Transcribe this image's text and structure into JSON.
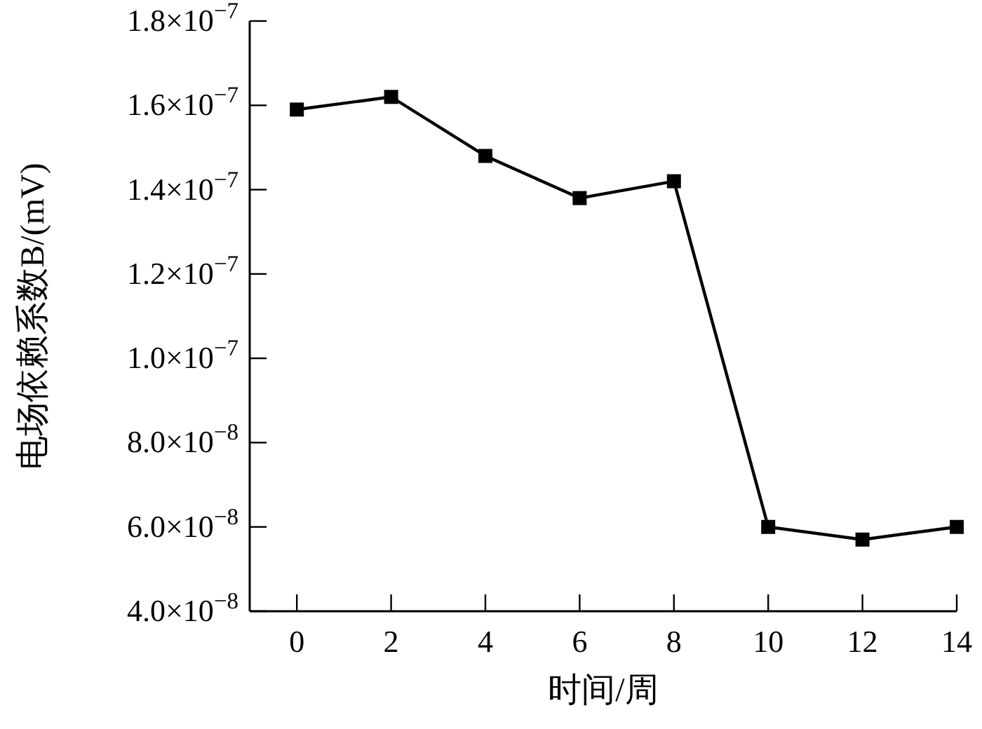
{
  "chart_data": {
    "type": "line",
    "xlabel": "时间/周",
    "ylabel": "电场依赖系数B/(mV)",
    "x": [
      0,
      2,
      4,
      6,
      8,
      10,
      12,
      14
    ],
    "series": [
      {
        "color": "#000000",
        "values": [
          1.59e-07,
          1.62e-07,
          1.48e-07,
          1.38e-07,
          1.42e-07,
          6e-08,
          5.7e-08,
          6e-08
        ]
      }
    ],
    "xlim": [
      -1,
      14
    ],
    "xticks": [
      0,
      2,
      4,
      6,
      8,
      10,
      12,
      14
    ],
    "ylim": [
      4e-08,
      1.8e-07
    ],
    "yticks": [
      {
        "value": 4e-08,
        "label": "4.0×10$^{−8}$"
      },
      {
        "value": 6e-08,
        "label": "6.0×10$^{−8}$"
      },
      {
        "value": 8e-08,
        "label": "8.0×10$^{−8}$"
      },
      {
        "value": 1e-07,
        "label": "1.0×10$^{−7}$"
      },
      {
        "value": 1.2e-07,
        "label": "1.2×10$^{−7}$"
      },
      {
        "value": 1.4e-07,
        "label": "1.4×10$^{−7}$"
      },
      {
        "value": 1.6e-07,
        "label": "1.6×10$^{−7}$"
      },
      {
        "value": 1.8e-07,
        "label": "1.8×10$^{−7}$"
      }
    ],
    "marker": "square",
    "line_style": "solid"
  }
}
